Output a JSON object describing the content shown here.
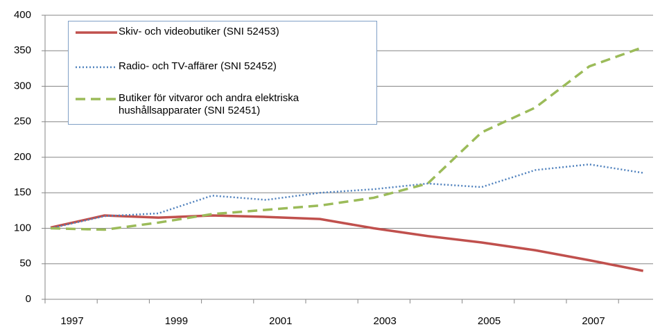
{
  "chart_data": {
    "type": "line",
    "categories": [
      "1997",
      null,
      "1999",
      null,
      "2001",
      null,
      "2003",
      null,
      "2005",
      null,
      "2007",
      null
    ],
    "series": [
      {
        "name": "Skiv- och videobutiker (SNI 52453)",
        "color": "#c0504d",
        "dash": "solid",
        "values": [
          101,
          118,
          115,
          118,
          116,
          113,
          100,
          89,
          80,
          69,
          55,
          40
        ]
      },
      {
        "name": "Radio- och TV-affärer (SNI 52452)",
        "color": "#4f81bd",
        "dash": "dotted",
        "values": [
          100,
          117,
          121,
          146,
          140,
          150,
          155,
          163,
          158,
          182,
          190,
          178
        ]
      },
      {
        "name": "Butiker för vitvaror och andra elektriska hushållsapparater (SNI 52451)",
        "color": "#9bbb59",
        "dash": "dashed",
        "values": [
          100,
          98,
          108,
          120,
          126,
          132,
          143,
          163,
          235,
          270,
          328,
          355
        ]
      }
    ],
    "ylim": [
      0,
      400
    ],
    "yticks": [
      0,
      50,
      100,
      150,
      200,
      250,
      300,
      350,
      400
    ],
    "grid": true
  }
}
